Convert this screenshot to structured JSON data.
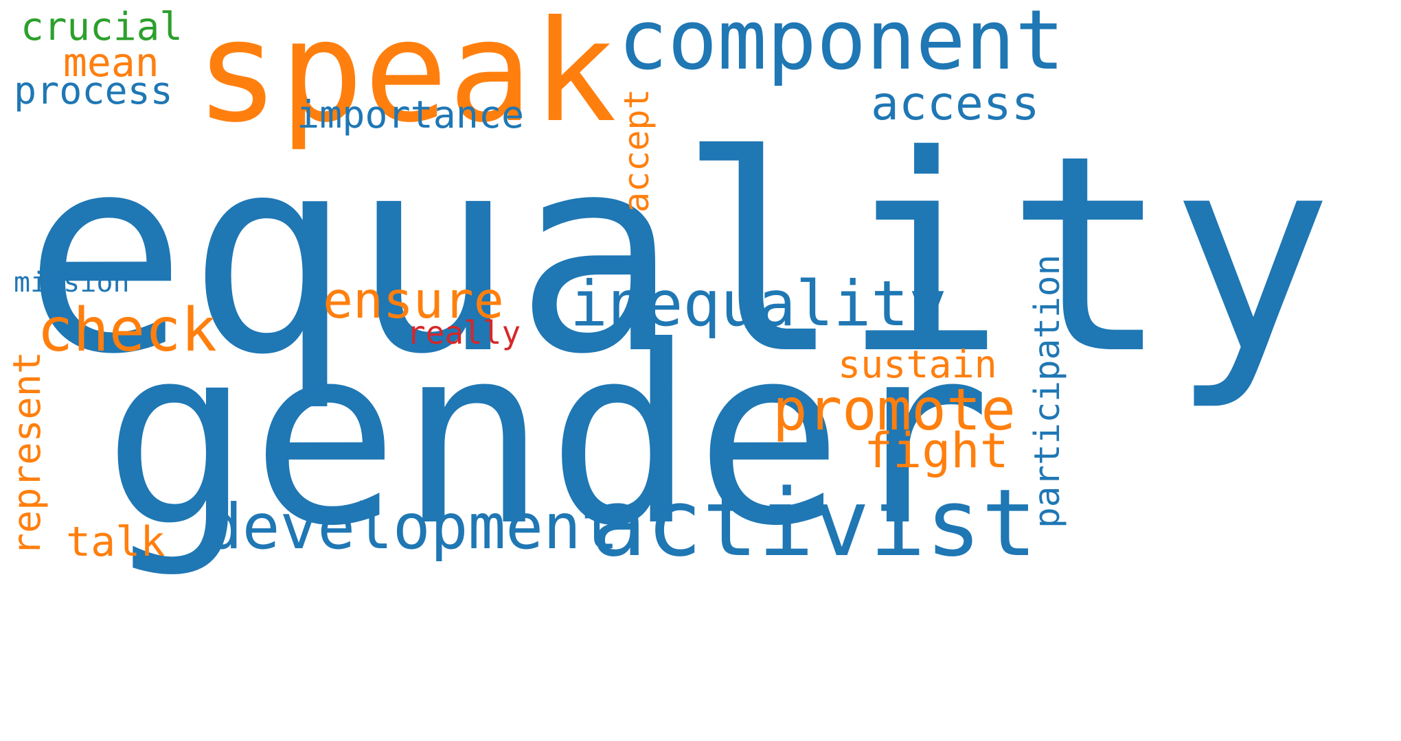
{
  "colors": {
    "blue": "#1f77b4",
    "orange": "#ff7f0e",
    "green": "#2ca02c",
    "red": "#d62728",
    "background": "#ffffff"
  },
  "words": {
    "equality": "equality",
    "gender": "gender",
    "speak": "speak",
    "component": "component",
    "activist": "activist",
    "inequality": "inequality",
    "development": "development",
    "promote": "promote",
    "check": "check",
    "ensure": "ensure",
    "access": "access",
    "importance": "importance",
    "process": "process",
    "mean": "mean",
    "crucial": "crucial",
    "accept": "accept",
    "mission": "mission",
    "really": "really",
    "sustain": "sustain",
    "fight": "fight",
    "represent": "represent",
    "talk": "talk",
    "participation": "participation"
  }
}
